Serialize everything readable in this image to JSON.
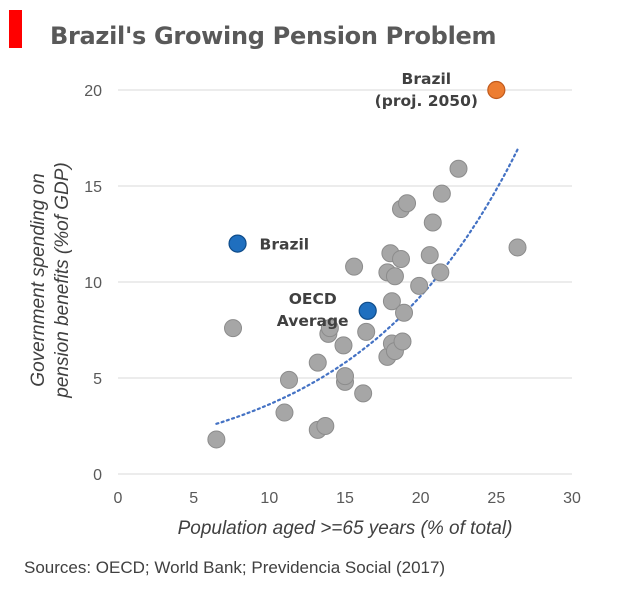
{
  "title": "Brazil's Growing Pension Problem",
  "source": "Sources: OECD; World Bank; Previdencia Social (2017)",
  "colors": {
    "accent": "#ff0000",
    "country": "#a6a6a6",
    "highlight": "#1f6fbf",
    "projection": "#ed7d31",
    "trend": "#4472c4",
    "grid": "#d9d9d9"
  },
  "chart_data": {
    "type": "scatter",
    "title": "Brazil's Growing Pension Problem",
    "xlabel": "Population aged >=65 years (% of total)",
    "ylabel_lines": [
      "Government spending on",
      "pension benefits (%of GDP)"
    ],
    "xlim": [
      0,
      30
    ],
    "ylim": [
      0,
      20
    ],
    "x_ticks": [
      0,
      5,
      10,
      15,
      20,
      25,
      30
    ],
    "y_ticks": [
      0,
      5,
      10,
      15,
      20
    ],
    "grid": "horizontal",
    "legend": "none",
    "countries": [
      {
        "x": 6.5,
        "y": 1.8
      },
      {
        "x": 7.6,
        "y": 7.6
      },
      {
        "x": 11.0,
        "y": 3.2
      },
      {
        "x": 11.3,
        "y": 4.9
      },
      {
        "x": 13.2,
        "y": 2.3
      },
      {
        "x": 13.7,
        "y": 2.5
      },
      {
        "x": 13.2,
        "y": 5.8
      },
      {
        "x": 13.9,
        "y": 7.3
      },
      {
        "x": 14.0,
        "y": 7.6
      },
      {
        "x": 14.9,
        "y": 6.7
      },
      {
        "x": 15.0,
        "y": 4.8
      },
      {
        "x": 15.0,
        "y": 5.1
      },
      {
        "x": 15.6,
        "y": 10.8
      },
      {
        "x": 16.2,
        "y": 4.2
      },
      {
        "x": 16.4,
        "y": 7.4
      },
      {
        "x": 17.8,
        "y": 6.1
      },
      {
        "x": 17.8,
        "y": 10.5
      },
      {
        "x": 18.0,
        "y": 11.5
      },
      {
        "x": 18.1,
        "y": 9.0
      },
      {
        "x": 18.1,
        "y": 6.8
      },
      {
        "x": 18.3,
        "y": 6.4
      },
      {
        "x": 18.3,
        "y": 10.3
      },
      {
        "x": 18.7,
        "y": 11.2
      },
      {
        "x": 18.8,
        "y": 6.9
      },
      {
        "x": 18.9,
        "y": 8.4
      },
      {
        "x": 18.7,
        "y": 13.8
      },
      {
        "x": 19.1,
        "y": 14.1
      },
      {
        "x": 19.9,
        "y": 9.8
      },
      {
        "x": 20.6,
        "y": 11.4
      },
      {
        "x": 20.8,
        "y": 13.1
      },
      {
        "x": 21.3,
        "y": 10.5
      },
      {
        "x": 21.4,
        "y": 14.6
      },
      {
        "x": 22.5,
        "y": 15.9
      },
      {
        "x": 26.4,
        "y": 11.8
      }
    ],
    "highlights": [
      {
        "label": "Brazil",
        "x": 7.9,
        "y": 12.0,
        "color": "#1f6fbf"
      },
      {
        "label": "OECD Average",
        "label_lines": [
          "OECD",
          "Average"
        ],
        "x": 16.5,
        "y": 8.5,
        "color": "#1f6fbf"
      },
      {
        "label": "Brazil (proj. 2050)",
        "label_lines": [
          "Brazil",
          "(proj. 2050)"
        ],
        "x": 25.0,
        "y": 20.0,
        "color": "#ed7d31"
      }
    ],
    "trendline": {
      "type": "exponential",
      "a": 1.42,
      "b": 0.0938,
      "x_from": 6.5,
      "x_to": 26.4
    }
  }
}
